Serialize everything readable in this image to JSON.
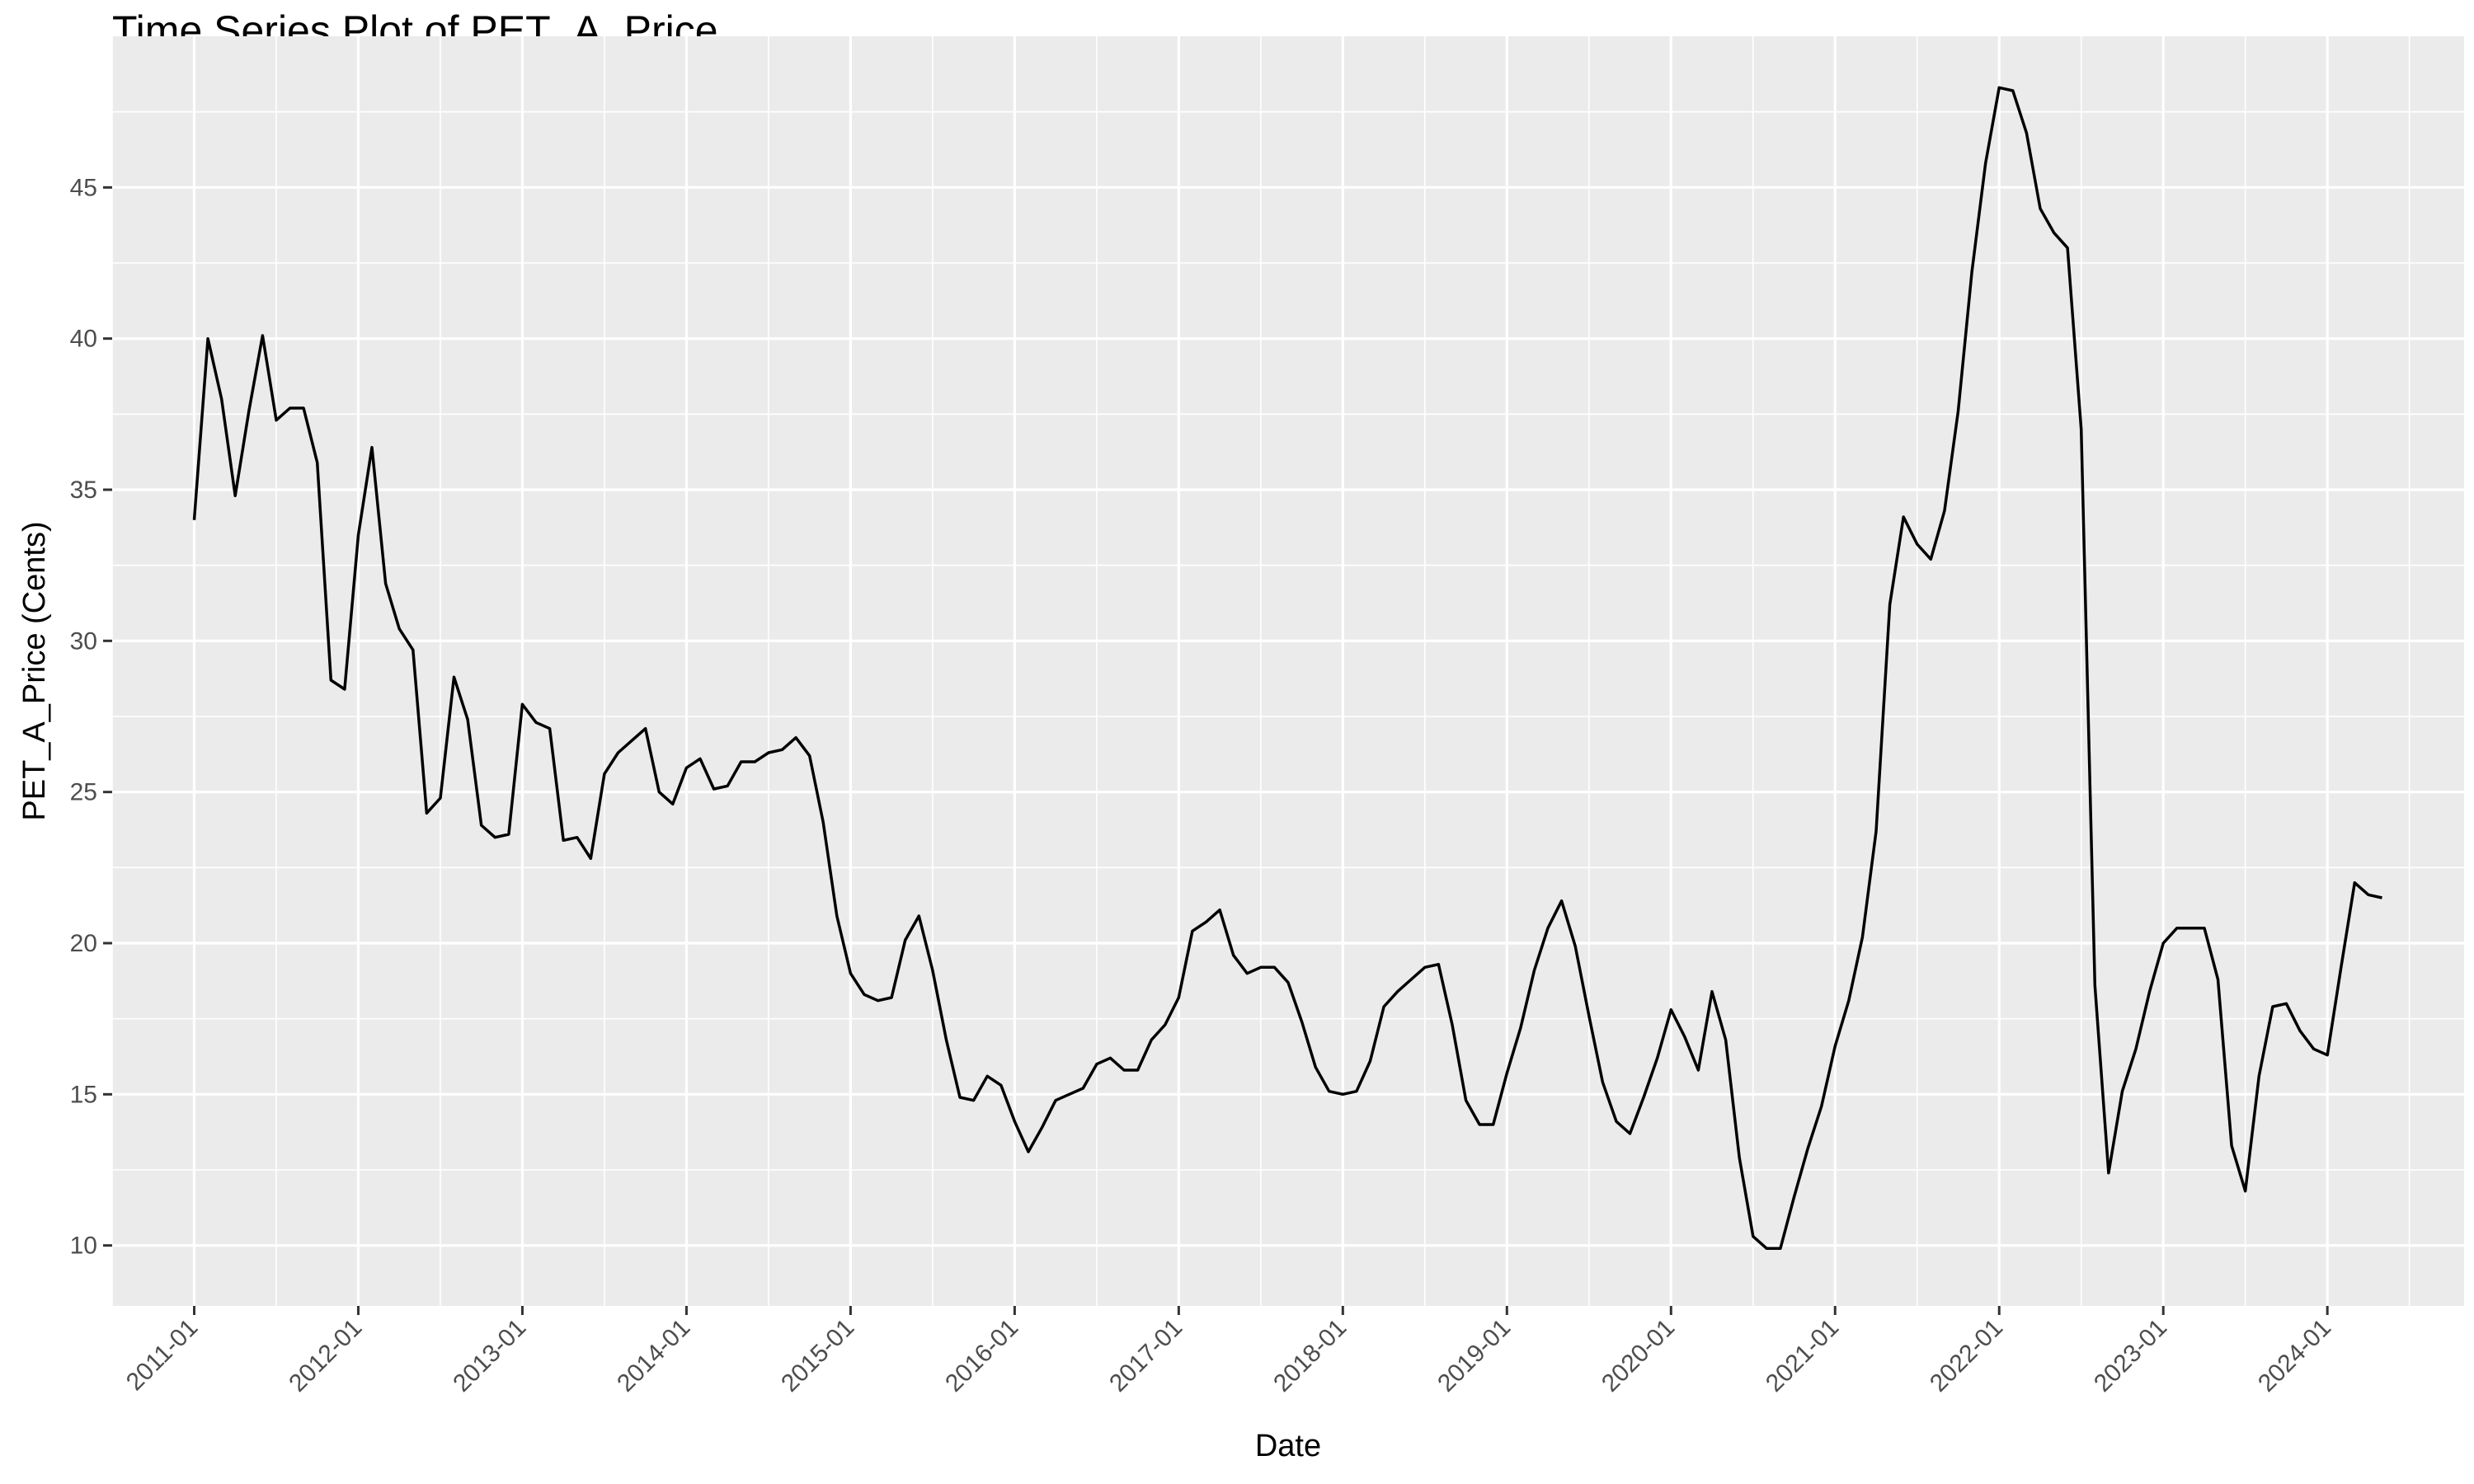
{
  "chart_data": {
    "type": "line",
    "title": "Time Series Plot of PET_A_Price",
    "xlabel": "Date",
    "ylabel": "PET_A_Price (Cents)",
    "x_tick_labels": [
      "2011-01",
      "2012-01",
      "2013-01",
      "2014-01",
      "2015-01",
      "2016-01",
      "2017-01",
      "2018-01",
      "2019-01",
      "2020-01",
      "2021-01",
      "2022-01",
      "2023-01",
      "2024-01"
    ],
    "y_ticks": [
      10,
      15,
      20,
      25,
      30,
      35,
      40,
      45
    ],
    "ylim": [
      8.0,
      50.0
    ],
    "xlim": [
      "2010-07",
      "2024-11"
    ],
    "grid": true,
    "background": "#ebebeb",
    "line_color": "#000000",
    "series": [
      {
        "x": [
          "2011-01",
          "2011-02",
          "2011-03",
          "2011-04",
          "2011-05",
          "2011-06",
          "2011-07",
          "2011-08",
          "2011-09",
          "2011-10",
          "2011-11",
          "2011-12",
          "2012-01",
          "2012-02",
          "2012-03",
          "2012-04",
          "2012-05",
          "2012-06",
          "2012-07",
          "2012-08",
          "2012-09",
          "2012-10",
          "2012-11",
          "2012-12",
          "2013-01",
          "2013-02",
          "2013-03",
          "2013-04",
          "2013-05",
          "2013-06",
          "2013-07",
          "2013-08",
          "2013-09",
          "2013-10",
          "2013-11",
          "2013-12",
          "2014-01",
          "2014-02",
          "2014-03",
          "2014-04",
          "2014-05",
          "2014-06",
          "2014-07",
          "2014-08",
          "2014-09",
          "2014-10",
          "2014-11",
          "2014-12",
          "2015-01",
          "2015-02",
          "2015-03",
          "2015-04",
          "2015-05",
          "2015-06",
          "2015-07",
          "2015-08",
          "2015-09",
          "2015-10",
          "2015-11",
          "2015-12",
          "2016-01",
          "2016-02",
          "2016-03",
          "2016-04",
          "2016-05",
          "2016-06",
          "2016-07",
          "2016-08",
          "2016-09",
          "2016-10",
          "2016-11",
          "2016-12",
          "2017-01",
          "2017-02",
          "2017-03",
          "2017-04",
          "2017-05",
          "2017-06",
          "2017-07",
          "2017-08",
          "2017-09",
          "2017-10",
          "2017-11",
          "2017-12",
          "2018-01",
          "2018-02",
          "2018-03",
          "2018-04",
          "2018-05",
          "2018-06",
          "2018-07",
          "2018-08",
          "2018-09",
          "2018-10",
          "2018-11",
          "2018-12",
          "2019-01",
          "2019-02",
          "2019-03",
          "2019-04",
          "2019-05",
          "2019-06",
          "2019-07",
          "2019-08",
          "2019-09",
          "2019-10",
          "2019-11",
          "2019-12",
          "2020-01",
          "2020-02",
          "2020-03",
          "2020-04",
          "2020-05",
          "2020-06",
          "2020-07",
          "2020-08",
          "2020-09",
          "2020-10",
          "2020-11",
          "2020-12",
          "2021-01",
          "2021-02",
          "2021-03",
          "2021-04",
          "2021-05",
          "2021-06",
          "2021-07",
          "2021-08",
          "2021-09",
          "2021-10",
          "2021-11",
          "2021-12",
          "2022-01",
          "2022-02",
          "2022-03",
          "2022-04",
          "2022-05",
          "2022-06",
          "2022-07",
          "2022-08",
          "2022-09",
          "2022-10",
          "2022-11",
          "2022-12",
          "2023-01",
          "2023-02",
          "2023-03",
          "2023-04",
          "2023-05",
          "2023-06",
          "2023-07",
          "2023-08",
          "2023-09",
          "2023-10",
          "2023-11",
          "2023-12",
          "2024-01",
          "2024-02",
          "2024-03",
          "2024-04",
          "2024-05"
        ],
        "values": [
          34.0,
          40.0,
          38.0,
          34.8,
          37.6,
          40.1,
          37.3,
          37.7,
          37.7,
          35.9,
          28.7,
          28.4,
          33.5,
          36.4,
          31.9,
          30.4,
          29.7,
          24.3,
          24.8,
          28.8,
          27.4,
          23.9,
          23.5,
          23.6,
          27.9,
          27.3,
          27.1,
          23.4,
          23.5,
          22.8,
          25.6,
          26.3,
          26.7,
          27.1,
          25.0,
          24.6,
          25.8,
          26.1,
          25.1,
          25.2,
          26.0,
          26.0,
          26.3,
          26.4,
          26.8,
          26.2,
          24.0,
          20.9,
          19.0,
          18.3,
          18.1,
          18.2,
          20.1,
          20.9,
          19.1,
          16.8,
          14.9,
          14.8,
          15.6,
          15.3,
          14.1,
          13.1,
          13.9,
          14.8,
          15.0,
          15.2,
          16.0,
          16.2,
          15.8,
          15.8,
          16.8,
          17.3,
          18.2,
          20.4,
          20.7,
          21.1,
          19.6,
          19.0,
          19.2,
          19.2,
          18.7,
          17.4,
          15.9,
          15.1,
          15.0,
          15.1,
          16.1,
          17.9,
          18.4,
          18.8,
          19.2,
          19.3,
          17.3,
          14.8,
          14.0,
          14.0,
          15.7,
          17.2,
          19.1,
          20.5,
          21.4,
          19.9,
          17.6,
          15.4,
          14.1,
          13.7,
          14.9,
          16.2,
          17.8,
          16.9,
          15.8,
          18.4,
          16.8,
          12.9,
          10.3,
          9.9,
          9.9,
          11.6,
          13.2,
          14.6,
          16.6,
          18.1,
          20.2,
          23.7,
          31.2,
          34.1,
          33.2,
          32.7,
          34.3,
          37.6,
          42.2,
          45.8,
          48.3,
          48.2,
          46.8,
          44.3,
          43.5,
          43.0,
          37.0,
          18.6,
          12.4,
          15.1,
          16.5,
          18.4,
          20.0,
          20.5,
          20.5,
          20.5,
          18.8,
          13.3,
          11.8,
          15.6,
          17.9,
          18.0,
          17.1,
          16.5,
          16.3,
          19.2,
          22.0,
          21.6,
          21.5
        ]
      }
    ]
  }
}
